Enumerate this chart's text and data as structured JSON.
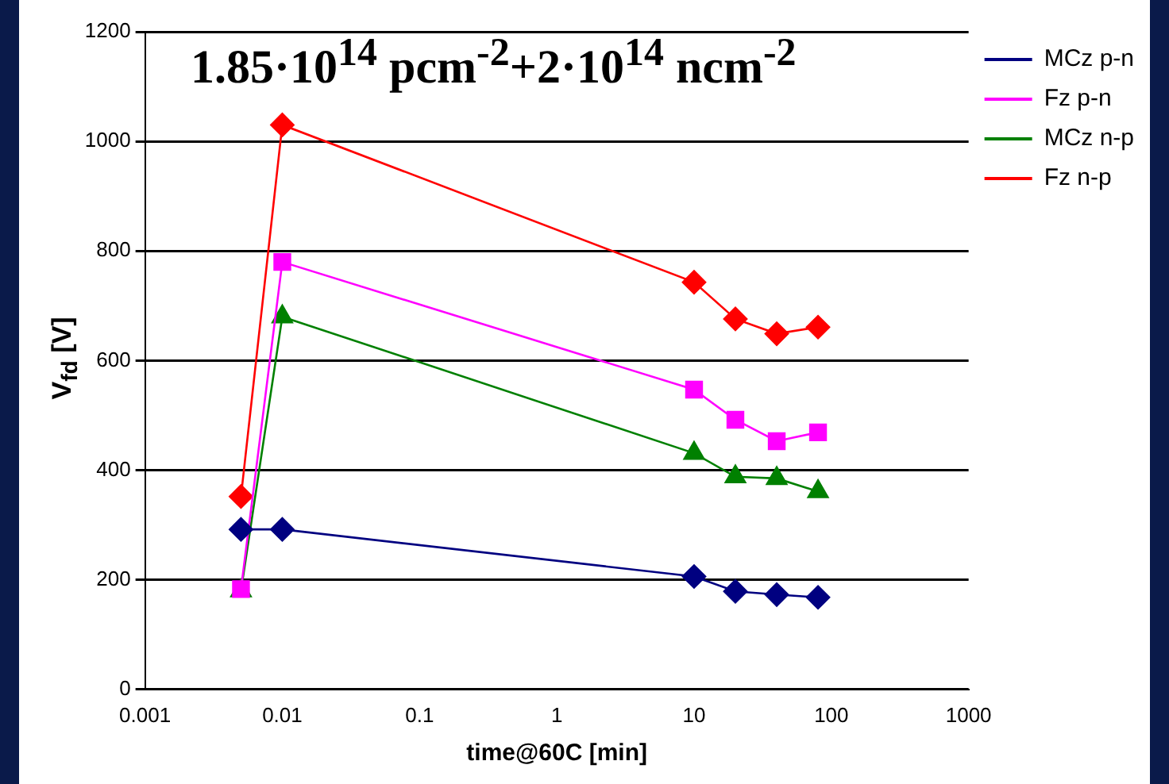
{
  "chart_data": {
    "type": "line",
    "title": "1.85·10$^{14}$ pcm$^{-2}$+2·10$^{14}$ ncm$^{-2}$",
    "xlabel": "time@60C [min]",
    "ylabel": "V$_{fd}$ [V]",
    "x": [
      0.005,
      0.01,
      10,
      20,
      40,
      80
    ],
    "series": [
      {
        "name": "MCz p-n",
        "color": "#000080",
        "marker": "diamond",
        "values": [
          292,
          292,
          206,
          179,
          173,
          168
        ]
      },
      {
        "name": "Fz p-n",
        "color": "#ff00ff",
        "marker": "square",
        "values": [
          183,
          780,
          547,
          492,
          453,
          469
        ]
      },
      {
        "name": "MCz n-p",
        "color": "#008000",
        "marker": "triangle",
        "values": [
          180,
          680,
          431,
          388,
          385,
          361
        ]
      },
      {
        "name": "Fz n-p",
        "color": "#ff0000",
        "marker": "diamond",
        "values": [
          352,
          1030,
          743,
          676,
          649,
          661
        ]
      }
    ],
    "log": "x",
    "xlim": [
      0.001,
      1000
    ],
    "xticks": [
      0.001,
      0.01,
      0.1,
      1,
      10,
      100,
      1000
    ],
    "ylim": [
      0,
      1200
    ],
    "yticks": [
      0,
      200,
      400,
      600,
      800,
      1000,
      1200
    ],
    "grid": "y",
    "legend": "top right"
  }
}
